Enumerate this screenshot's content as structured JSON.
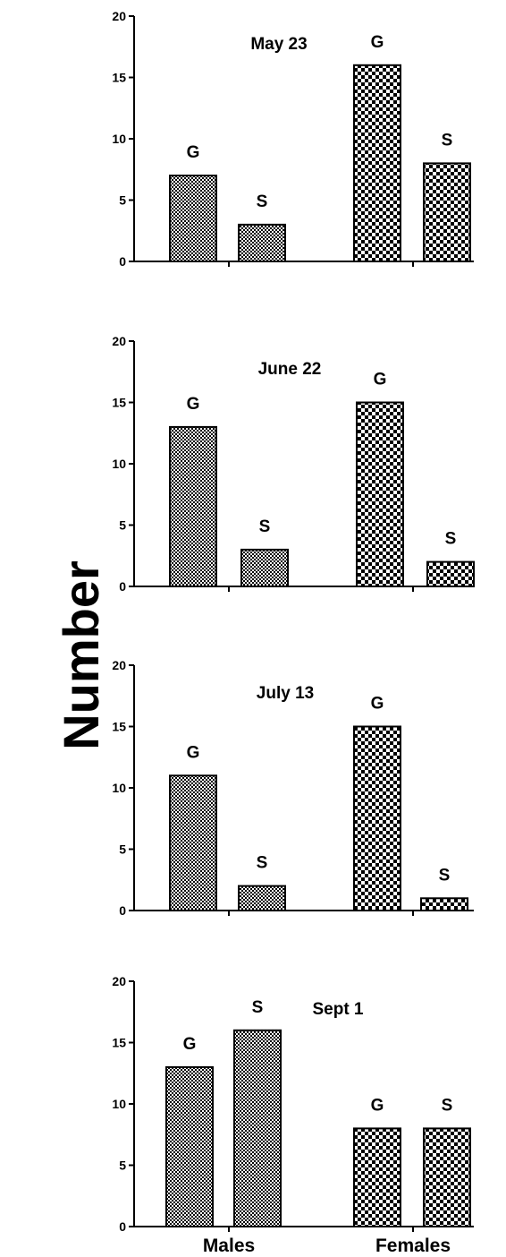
{
  "chart_data": {
    "type": "bar",
    "ylabel": "Number",
    "categories": [
      "Males",
      "Females"
    ],
    "ylim": [
      0,
      20
    ],
    "yticks": [
      0,
      5,
      10,
      15,
      20
    ],
    "grid": false,
    "legend": "none",
    "patterns": {
      "Males": "fine-checker",
      "Females": "coarse-checker"
    },
    "panels": [
      {
        "title": "May 23",
        "bars": [
          {
            "category": "Males",
            "label": "G",
            "value": 7
          },
          {
            "category": "Males",
            "label": "S",
            "value": 3
          },
          {
            "category": "Females",
            "label": "G",
            "value": 16
          },
          {
            "category": "Females",
            "label": "S",
            "value": 8
          }
        ]
      },
      {
        "title": "June 22",
        "bars": [
          {
            "category": "Males",
            "label": "G",
            "value": 13
          },
          {
            "category": "Males",
            "label": "S",
            "value": 3
          },
          {
            "category": "Females",
            "label": "G",
            "value": 15
          },
          {
            "category": "Females",
            "label": "S",
            "value": 2
          }
        ]
      },
      {
        "title": "July 13",
        "bars": [
          {
            "category": "Males",
            "label": "G",
            "value": 11
          },
          {
            "category": "Males",
            "label": "S",
            "value": 2
          },
          {
            "category": "Females",
            "label": "G",
            "value": 15
          },
          {
            "category": "Females",
            "label": "S",
            "value": 1
          }
        ]
      },
      {
        "title": "Sept 1",
        "bars": [
          {
            "category": "Males",
            "label": "G",
            "value": 13
          },
          {
            "category": "Males",
            "label": "S",
            "value": 16
          },
          {
            "category": "Females",
            "label": "G",
            "value": 8
          },
          {
            "category": "Females",
            "label": "S",
            "value": 8
          }
        ]
      }
    ]
  }
}
